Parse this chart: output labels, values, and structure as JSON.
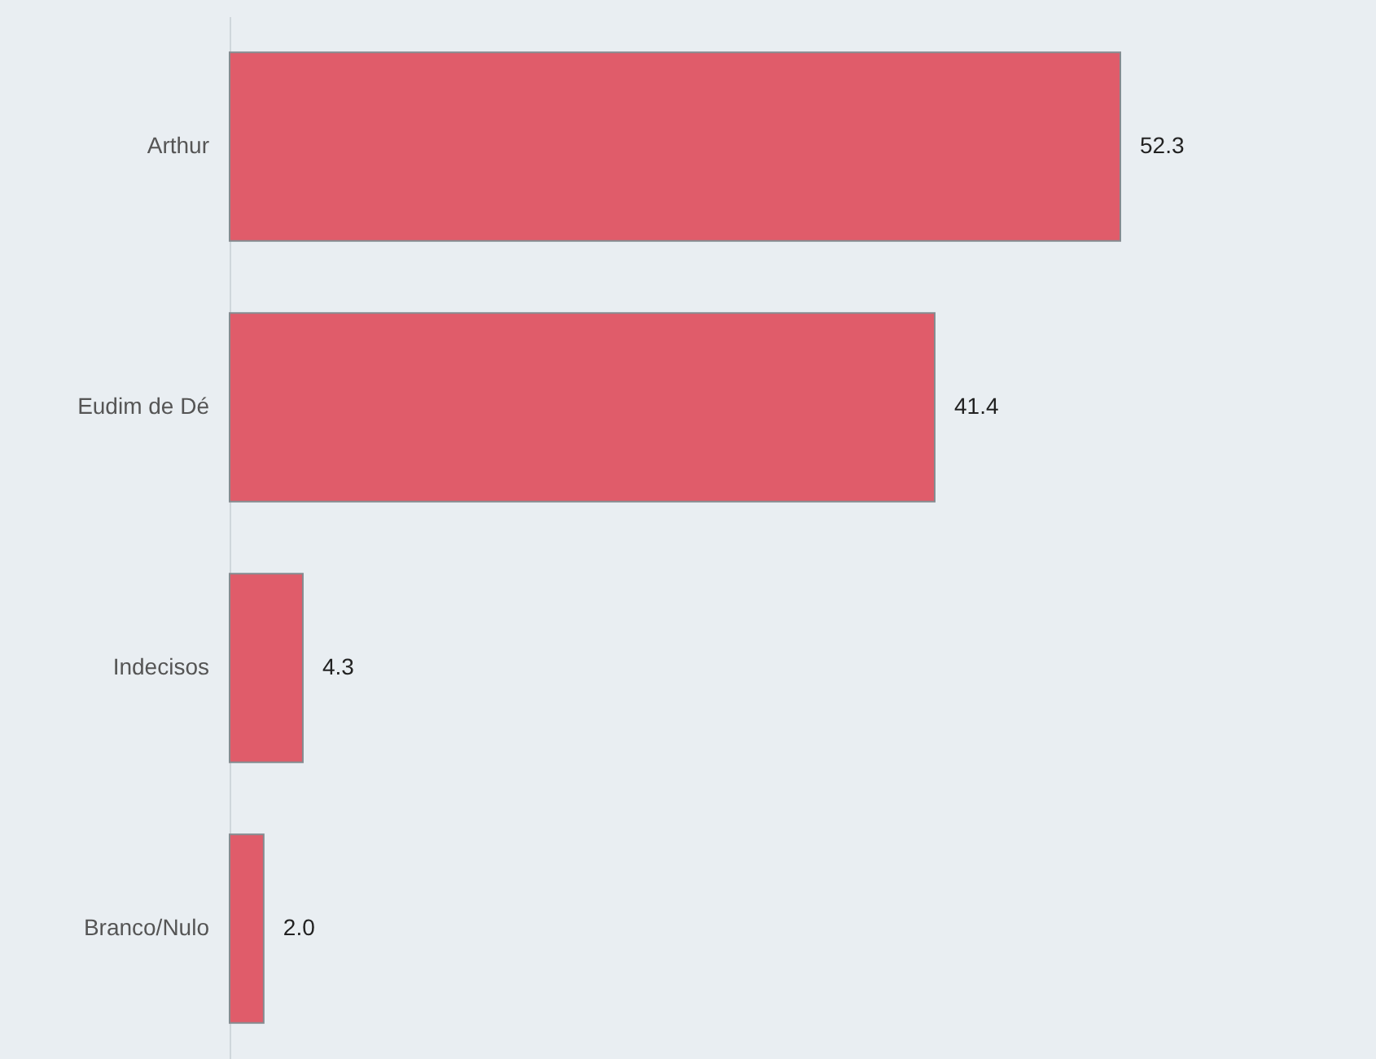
{
  "chart_data": {
    "type": "bar",
    "orientation": "horizontal",
    "categories": [
      "Arthur",
      "Eudim de Dé",
      "Indecisos",
      "Branco/Nulo"
    ],
    "values": [
      52.3,
      41.4,
      4.3,
      2.0
    ],
    "value_labels": [
      "52.3",
      "41.4",
      "4.3",
      "2.0"
    ],
    "color": "#e05c6a"
  }
}
